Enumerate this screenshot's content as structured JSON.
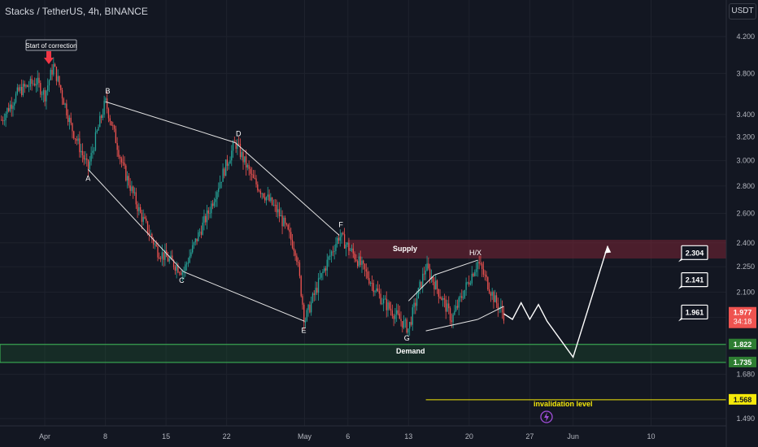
{
  "header": {
    "title": "Stacks / TetherUS, 4h, BINANCE",
    "currency": "USDT"
  },
  "colors": {
    "background": "#131722",
    "up": "#26a69a",
    "down": "#ef5350",
    "supply": "#7a2535",
    "demand": "#1e6b34",
    "invalidation": "#f5e90a"
  },
  "chart_data": {
    "type": "candlestick",
    "yscale": "log",
    "ylim": [
      1.43,
      4.6
    ],
    "yticks": [
      "4.200",
      "3.800",
      "3.400",
      "3.200",
      "3.000",
      "2.800",
      "2.600",
      "2.400",
      "2.250",
      "2.100",
      "1.960",
      "1.822",
      "1.680",
      "1.490"
    ],
    "xticks": [
      "Apr",
      "8",
      "15",
      "22",
      "May",
      "6",
      "13",
      "20",
      "27",
      "Jun",
      "10"
    ],
    "price_path": [
      {
        "x": "Mar 27",
        "y": 3.35
      },
      {
        "x": "Mar 29",
        "y": 3.62
      },
      {
        "x": "Mar 31",
        "y": 3.72
      },
      {
        "x": "Apr 1",
        "y": 3.58
      },
      {
        "x": "Apr 2",
        "y": 3.88
      },
      {
        "x": "Apr 4",
        "y": 3.3
      },
      {
        "x": "Apr 6",
        "y": 2.93
      },
      {
        "x": "Apr 8",
        "y": 3.52
      },
      {
        "x": "Apr 10",
        "y": 2.95
      },
      {
        "x": "Apr 12",
        "y": 2.6
      },
      {
        "x": "Apr 14",
        "y": 2.35
      },
      {
        "x": "Apr 17",
        "y": 2.22
      },
      {
        "x": "Apr 20",
        "y": 2.62
      },
      {
        "x": "Apr 23",
        "y": 3.15
      },
      {
        "x": "Apr 25",
        "y": 2.85
      },
      {
        "x": "Apr 28",
        "y": 2.6
      },
      {
        "x": "Apr 30",
        "y": 2.35
      },
      {
        "x": "May 1",
        "y": 1.94
      },
      {
        "x": "May 3",
        "y": 2.2
      },
      {
        "x": "May 5",
        "y": 2.45
      },
      {
        "x": "May 7",
        "y": 2.3
      },
      {
        "x": "May 10",
        "y": 2.05
      },
      {
        "x": "May 13",
        "y": 1.9
      },
      {
        "x": "May 15",
        "y": 2.25
      },
      {
        "x": "May 18",
        "y": 1.95
      },
      {
        "x": "May 21",
        "y": 2.28
      },
      {
        "x": "May 23",
        "y": 2.05
      },
      {
        "x": "May 24",
        "y": 1.977
      }
    ],
    "wave_labels": [
      {
        "text": "A",
        "x": "Apr 6",
        "y": 2.93
      },
      {
        "text": "B",
        "x": "Apr 8",
        "y": 3.52
      },
      {
        "text": "C",
        "x": "Apr 17",
        "y": 2.22
      },
      {
        "text": "D",
        "x": "Apr 23",
        "y": 3.15
      },
      {
        "text": "E",
        "x": "May 1",
        "y": 1.94
      },
      {
        "text": "F",
        "x": "May 5",
        "y": 2.45
      },
      {
        "text": "G",
        "x": "May 13",
        "y": 1.9
      },
      {
        "text": "H/X",
        "x": "May 21",
        "y": 2.28
      }
    ],
    "annotations": {
      "start_of_correction": "Start of correction",
      "supply": "Supply",
      "demand": "Demand",
      "invalidation": "invalidation level"
    },
    "zones": {
      "supply": {
        "label": "Supply",
        "from": 2.3,
        "to": 2.42
      },
      "demand": {
        "label": "Demand",
        "from": 1.735,
        "to": 1.822
      }
    },
    "price_labels": {
      "current": "1.977",
      "countdown": "34:18",
      "demand_top": "1.822",
      "demand_bottom": "1.735",
      "invalidation": "1.568"
    },
    "targets": [
      {
        "label": "2.304",
        "y": 2.304
      },
      {
        "label": "2.141",
        "y": 2.141
      },
      {
        "label": "1.961",
        "y": 1.961
      }
    ],
    "projection": [
      {
        "x": "May 24",
        "y": 1.98
      },
      {
        "x": "May 25",
        "y": 1.95
      },
      {
        "x": "May 26",
        "y": 2.04
      },
      {
        "x": "May 27",
        "y": 1.95
      },
      {
        "x": "May 28",
        "y": 2.03
      },
      {
        "x": "May 29",
        "y": 1.94
      },
      {
        "x": "Jun 1",
        "y": 1.76
      },
      {
        "x": "Jun 5",
        "y": 2.38
      }
    ],
    "invalidation_level": 1.568
  }
}
